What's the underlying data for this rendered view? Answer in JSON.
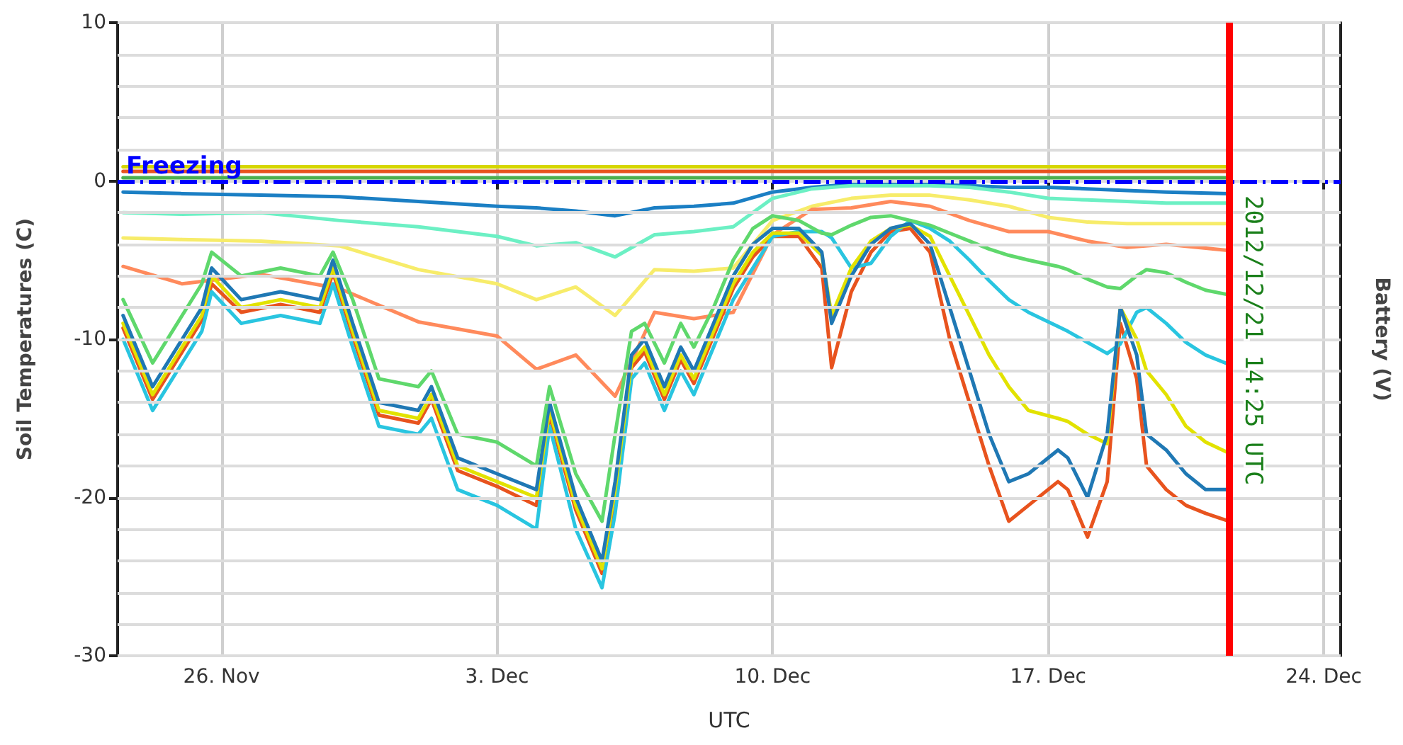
{
  "chart_data": {
    "type": "line",
    "xlabel": "UTC",
    "ylabel": "Soil Temperatures (C)",
    "y2label": "Battery (V)",
    "xlim": [
      "2012-11-23T08:40",
      "2012-12-24T10:20"
    ],
    "xticks": [
      {
        "value": "2012-11-26",
        "label": "26. Nov"
      },
      {
        "value": "2012-12-03",
        "label": "3. Dec"
      },
      {
        "value": "2012-12-10",
        "label": "10. Dec"
      },
      {
        "value": "2012-12-17",
        "label": "17. Dec"
      },
      {
        "value": "2012-12-24",
        "label": "24. Dec"
      }
    ],
    "ylim": [
      -30,
      10
    ],
    "yticks": [
      -30,
      {
        "value": -28,
        "label": null
      },
      {
        "value": -26,
        "label": null
      },
      {
        "value": -24,
        "label": null
      },
      {
        "value": -22,
        "label": null
      },
      -20,
      {
        "value": -18,
        "label": null
      },
      {
        "value": -16,
        "label": null
      },
      {
        "value": -14,
        "label": null
      },
      {
        "value": -12,
        "label": null
      },
      -10,
      {
        "value": -8,
        "label": null
      },
      {
        "value": -6,
        "label": null
      },
      {
        "value": -4,
        "label": null
      },
      {
        "value": -2,
        "label": null
      },
      0,
      {
        "value": 2,
        "label": null
      },
      {
        "value": 4,
        "label": null
      },
      {
        "value": 6,
        "label": null
      },
      {
        "value": 8,
        "label": null
      },
      10
    ],
    "grid": true,
    "marker": "none",
    "line_style": "solid",
    "x": [
      "2012-11-23T12:00",
      "2012-11-24T06:00",
      "2012-11-25T00:00",
      "2012-11-25T12:00",
      "2012-11-25T18:00",
      "2012-11-26T12:00",
      "2012-11-27T12:00",
      "2012-11-28T12:00",
      "2012-11-28T20:00",
      "2012-11-29T08:00",
      "2012-11-30T00:00",
      "2012-12-01T00:00",
      "2012-12-01T08:00",
      "2012-12-02T00:00",
      "2012-12-03T00:00",
      "2012-12-04T00:00",
      "2012-12-04T08:00",
      "2012-12-05T00:00",
      "2012-12-05T16:00",
      "2012-12-06T00:00",
      "2012-12-06T10:00",
      "2012-12-06T18:00",
      "2012-12-07T06:00",
      "2012-12-07T16:00",
      "2012-12-08T00:00",
      "2012-12-08T12:00",
      "2012-12-09T00:00",
      "2012-12-09T12:00",
      "2012-12-10T00:00",
      "2012-12-10T16:00",
      "2012-12-11T06:00",
      "2012-12-11T12:00",
      "2012-12-12T00:00",
      "2012-12-12T12:00",
      "2012-12-13T00:00",
      "2012-12-13T12:00",
      "2012-12-14T00:00",
      "2012-12-14T12:00",
      "2012-12-15T00:00",
      "2012-12-15T12:00",
      "2012-12-16T00:00",
      "2012-12-16T12:00",
      "2012-12-17T06:00",
      "2012-12-17T12:00",
      "2012-12-18T00:00",
      "2012-12-18T12:00",
      "2012-12-18T20:00",
      "2012-12-19T06:00",
      "2012-12-19T12:00",
      "2012-12-20T00:00",
      "2012-12-20T12:00",
      "2012-12-21T00:00",
      "2012-12-21T14:25"
    ],
    "series": [
      {
        "color": "#d6d600",
        "x": [
          "2012-11-23T12:00",
          "2012-12-21T14:25"
        ],
        "values": [
          0.9,
          0.9
        ]
      },
      {
        "color": "#e8531e",
        "x": [
          "2012-11-23T12:00",
          "2012-12-21T14:25"
        ],
        "values": [
          0.6,
          0.6
        ]
      },
      {
        "color": "#4caf50",
        "x": [
          "2012-11-23T12:00",
          "2012-12-21T14:25"
        ],
        "values": [
          0.2,
          0.2
        ]
      },
      {
        "color": "#1b7fc4",
        "x": [
          "2012-11-23T12:00",
          "2012-11-25",
          "2012-11-27",
          "2012-11-29",
          "2012-12-01",
          "2012-12-03",
          "2012-12-04",
          "2012-12-05",
          "2012-12-06",
          "2012-12-07",
          "2012-12-08",
          "2012-12-09",
          "2012-12-10",
          "2012-12-11",
          "2012-12-12",
          "2012-12-13",
          "2012-12-14",
          "2012-12-15",
          "2012-12-16",
          "2012-12-17",
          "2012-12-18",
          "2012-12-19",
          "2012-12-20",
          "2012-12-21T14:25"
        ],
        "values": [
          -0.7,
          -0.8,
          -0.9,
          -1,
          -1.3,
          -1.6,
          -1.7,
          -1.9,
          -2.2,
          -1.7,
          -1.6,
          -1.4,
          -0.7,
          -0.4,
          -0.2,
          -0.2,
          -0.2,
          -0.3,
          -0.4,
          -0.4,
          -0.5,
          -0.6,
          -0.7,
          -0.8
        ]
      },
      {
        "color": "#6cf0c4",
        "x": [
          "2012-11-23T12:00",
          "2012-11-25",
          "2012-11-27",
          "2012-11-29",
          "2012-12-01",
          "2012-12-03",
          "2012-12-04",
          "2012-12-05",
          "2012-12-06",
          "2012-12-07",
          "2012-12-08",
          "2012-12-09",
          "2012-12-10",
          "2012-12-11",
          "2012-12-12",
          "2012-12-13",
          "2012-12-14",
          "2012-12-15",
          "2012-12-16",
          "2012-12-17",
          "2012-12-18",
          "2012-12-19",
          "2012-12-20",
          "2012-12-21T14:25"
        ],
        "values": [
          -2,
          -2.1,
          -2,
          -2.5,
          -2.9,
          -3.5,
          -4.1,
          -3.9,
          -4.8,
          -3.4,
          -3.2,
          -2.9,
          -1.1,
          -0.5,
          -0.3,
          -0.3,
          -0.3,
          -0.4,
          -0.7,
          -1.1,
          -1.2,
          -1.3,
          -1.4,
          -1.4
        ]
      },
      {
        "color": "#f7ec6a",
        "x": [
          "2012-11-23T12:00",
          "2012-11-25",
          "2012-11-27",
          "2012-11-29",
          "2012-12-01",
          "2012-12-03",
          "2012-12-04",
          "2012-12-05",
          "2012-12-06",
          "2012-12-07",
          "2012-12-08",
          "2012-12-09",
          "2012-12-10",
          "2012-12-11",
          "2012-12-12",
          "2012-12-13",
          "2012-12-14",
          "2012-12-15",
          "2012-12-16",
          "2012-12-17",
          "2012-12-18",
          "2012-12-19",
          "2012-12-20",
          "2012-12-21T14:25"
        ],
        "values": [
          -3.6,
          -3.7,
          -3.8,
          -4.1,
          -5.6,
          -6.5,
          -7.5,
          -6.7,
          -8.5,
          -5.6,
          -5.7,
          -5.5,
          -2.5,
          -1.6,
          -1.1,
          -0.9,
          -0.9,
          -1.2,
          -1.6,
          -2.3,
          -2.6,
          -2.7,
          -2.7,
          -2.7
        ]
      },
      {
        "color": "#ff8a5c",
        "x": [
          "2012-11-23T12:00",
          "2012-11-25",
          "2012-11-27",
          "2012-11-29",
          "2012-12-01",
          "2012-12-03",
          "2012-12-04",
          "2012-12-05",
          "2012-12-06",
          "2012-12-07",
          "2012-12-08",
          "2012-12-09",
          "2012-12-10",
          "2012-12-11",
          "2012-12-12",
          "2012-12-13",
          "2012-12-14",
          "2012-12-15",
          "2012-12-16",
          "2012-12-17",
          "2012-12-18",
          "2012-12-19",
          "2012-12-20",
          "2012-12-21T14:25"
        ],
        "values": [
          -5.4,
          -6.5,
          -5.9,
          -6.8,
          -8.9,
          -9.8,
          -11.9,
          -11,
          -13.6,
          -8.3,
          -8.7,
          -8.3,
          -3.4,
          -1.8,
          -1.7,
          -1.3,
          -1.6,
          -2.5,
          -3.2,
          -3.2,
          -3.8,
          -4.2,
          -4,
          -4.4
        ]
      },
      {
        "color": "#e8531e",
        "values": [
          -9.3,
          -13.8,
          -10.8,
          -8.8,
          -6.5,
          -8.3,
          -7.8,
          -8.3,
          -5.8,
          -9.8,
          -14.8,
          -15.3,
          -13.8,
          -18.3,
          -19.3,
          -20.5,
          -14.8,
          -20.8,
          -24.8,
          -19.8,
          -11.8,
          -10.8,
          -13.8,
          -11.3,
          -12.8,
          -9.8,
          -6.8,
          -4.8,
          -3.5,
          -3.5,
          -5.5,
          -11.8,
          -7,
          -4.5,
          -3.2,
          -3,
          -4.5,
          -10,
          -14,
          -18,
          -21.5,
          -20.5,
          -19,
          -19.5,
          -22.5,
          -19,
          -9,
          -12.5,
          -18,
          -19.5,
          -20.5,
          -21,
          -21.5
        ]
      },
      {
        "color": "#29c5e0",
        "values": [
          -10,
          -14.5,
          -11.5,
          -9.5,
          -7,
          -9,
          -8.5,
          -9,
          -6.5,
          -10.5,
          -15.5,
          -16,
          -15,
          -19.5,
          -20.5,
          -22,
          -15.5,
          -22,
          -25.7,
          -21,
          -12.5,
          -11.5,
          -14.5,
          -12,
          -13.5,
          -10.5,
          -7.5,
          -5.5,
          -3.5,
          -3.2,
          -3.2,
          -3.6,
          -5.5,
          -5.2,
          -3.5,
          -2.5,
          -3,
          -3.8,
          -5,
          -6.3,
          -7.5,
          -8.3,
          -9.2,
          -9.5,
          -10.2,
          -10.9,
          -10.3,
          -8.3,
          -8,
          -9,
          -10.2,
          -11,
          -11.6
        ]
      },
      {
        "color": "#e2e200",
        "values": [
          -9,
          -13.5,
          -10.5,
          -8.5,
          -6,
          -8,
          -7.5,
          -8,
          -5.5,
          -9.5,
          -14.5,
          -15,
          -13.5,
          -18,
          -19,
          -20,
          -14.5,
          -20.5,
          -24.5,
          -19.5,
          -11.5,
          -10.5,
          -13.5,
          -11,
          -12.5,
          -9.5,
          -6.5,
          -4.5,
          -3.3,
          -3.3,
          -4.7,
          -8.5,
          -5.5,
          -3.8,
          -3,
          -2.8,
          -3.5,
          -6,
          -8.5,
          -11,
          -13,
          -14.5,
          -15,
          -15.2,
          -16,
          -16.6,
          -8,
          -10,
          -12,
          -13.5,
          -15.5,
          -16.5,
          -17.2
        ]
      },
      {
        "color": "#1f78b4",
        "values": [
          -8.5,
          -13,
          -10,
          -8,
          -5.5,
          -7.5,
          -7,
          -7.5,
          -5,
          -9,
          -14,
          -14.5,
          -13,
          -17.5,
          -18.5,
          -19.5,
          -14,
          -20,
          -24,
          -19,
          -11,
          -10,
          -13,
          -10.5,
          -12,
          -9,
          -6,
          -4,
          -3,
          -3,
          -4.5,
          -9,
          -6,
          -4,
          -3,
          -2.7,
          -4,
          -8,
          -12,
          -16,
          -19,
          -18.5,
          -17,
          -17.5,
          -20,
          -16,
          -8,
          -11,
          -16,
          -17,
          -18.5,
          -19.5,
          -19.5
        ]
      },
      {
        "color": "#5fd86c",
        "values": [
          -7.5,
          -11.5,
          -8.5,
          -6.5,
          -4.5,
          -6,
          -5.5,
          -6,
          -4.5,
          -7.5,
          -12.5,
          -13,
          -12,
          -16,
          -16.5,
          -18,
          -13,
          -18.5,
          -21.5,
          -16,
          -9.5,
          -9,
          -11.5,
          -9,
          -10.5,
          -8,
          -5,
          -3,
          -2.2,
          -2.5,
          -3.3,
          -3.4,
          -2.8,
          -2.3,
          -2.2,
          -2.5,
          -2.8,
          -3.3,
          -3.8,
          -4.3,
          -4.7,
          -5,
          -5.4,
          -5.6,
          -6.2,
          -6.7,
          -6.8,
          -6,
          -5.6,
          -5.8,
          -6.4,
          -6.9,
          -7.2
        ]
      }
    ],
    "ref_lines": [
      {
        "axis": "y",
        "value": 0,
        "label": "Freezing",
        "color": "#0000ff",
        "line_style": "dashed"
      },
      {
        "axis": "x",
        "value": "2012-12-21T14:25",
        "label": "2012/12/21 14:25 UTC",
        "color": "#ff0000",
        "line_style": "solid"
      }
    ]
  }
}
